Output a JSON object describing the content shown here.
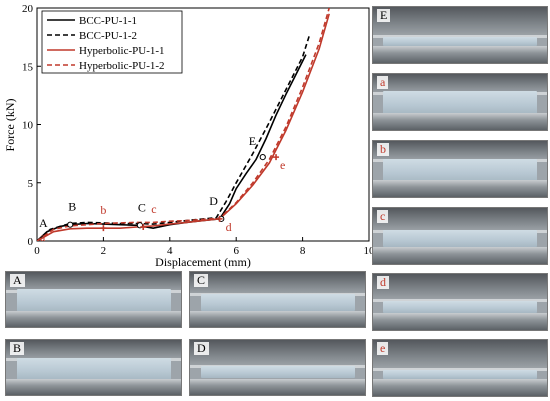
{
  "chart_data": {
    "type": "line",
    "xlabel": "Displacement (mm)",
    "ylabel": "Force (kN)",
    "xlim": [
      0,
      10
    ],
    "ylim": [
      0,
      20
    ],
    "xticks": [
      "0",
      "2",
      "4",
      "6",
      "8",
      "10"
    ],
    "yticks": [
      "0",
      "5",
      "10",
      "15",
      "20"
    ],
    "grid": false,
    "legend_position": "top-left",
    "series": [
      {
        "name": "BCC-PU-1-1",
        "color": "#000000",
        "dash": "solid",
        "x": [
          0,
          0.3,
          0.7,
          1.0,
          1.5,
          2.0,
          2.5,
          3.0,
          3.5,
          4.0,
          4.5,
          5.0,
          5.5,
          5.8,
          6.0,
          6.3,
          6.6,
          6.9,
          7.2,
          7.5,
          7.8,
          8.1
        ],
        "y": [
          0,
          0.8,
          1.25,
          1.4,
          1.5,
          1.45,
          1.4,
          1.35,
          1.1,
          1.4,
          1.6,
          1.75,
          1.9,
          3.2,
          4.5,
          5.8,
          7.0,
          8.8,
          10.8,
          12.6,
          14.3,
          16.0
        ]
      },
      {
        "name": "BCC-PU-1-2",
        "color": "#000000",
        "dash": "dashed",
        "x": [
          0,
          0.4,
          1.0,
          1.5,
          2.0,
          2.5,
          3.0,
          3.5,
          4.0,
          4.5,
          5.0,
          5.4,
          5.7,
          6.0,
          6.5,
          7.0,
          7.5,
          8.0,
          8.2
        ],
        "y": [
          0,
          1.0,
          1.5,
          1.6,
          1.55,
          1.5,
          1.5,
          1.45,
          1.6,
          1.75,
          1.9,
          2.0,
          3.4,
          5.0,
          7.5,
          10.2,
          13.0,
          15.8,
          17.6
        ]
      },
      {
        "name": "Hyperbolic-PU-1-1",
        "color": "#c0392b",
        "dash": "solid",
        "x": [
          0,
          0.5,
          1.0,
          1.5,
          2.0,
          2.5,
          3.0,
          3.5,
          4.0,
          4.5,
          5.0,
          5.5,
          6.0,
          6.5,
          7.0,
          7.5,
          8.0,
          8.5,
          8.8
        ],
        "y": [
          0,
          0.8,
          1.05,
          1.1,
          1.1,
          1.1,
          1.2,
          1.3,
          1.45,
          1.6,
          1.75,
          1.9,
          3.2,
          4.8,
          6.7,
          9.5,
          12.8,
          16.5,
          19.5
        ]
      },
      {
        "name": "Hyperbolic-PU-1-2",
        "color": "#c0392b",
        "dash": "dashed",
        "x": [
          0,
          0.5,
          1.0,
          1.5,
          2.0,
          2.5,
          3.0,
          3.5,
          4.0,
          4.5,
          5.0,
          5.5,
          6.0,
          6.5,
          7.0,
          7.5,
          8.0,
          8.5,
          8.8
        ],
        "y": [
          0,
          1.0,
          1.3,
          1.4,
          1.5,
          1.55,
          1.6,
          1.6,
          1.7,
          1.75,
          1.85,
          1.95,
          3.3,
          5.0,
          7.0,
          9.8,
          13.2,
          17.0,
          20.0
        ]
      }
    ],
    "annotations": [
      {
        "text": "A",
        "x": 0.0,
        "y": 0.0,
        "series": 0,
        "color": "#000000"
      },
      {
        "text": "B",
        "x": 1.0,
        "y": 1.4,
        "series": 0,
        "color": "#000000"
      },
      {
        "text": "C",
        "x": 3.1,
        "y": 1.35,
        "series": 0,
        "color": "#000000"
      },
      {
        "text": "D",
        "x": 5.55,
        "y": 1.9,
        "series": 0,
        "color": "#000000"
      },
      {
        "text": "E",
        "x": 6.8,
        "y": 7.2,
        "series": 0,
        "color": "#000000"
      },
      {
        "text": "a",
        "x": 0.0,
        "y": 0.0,
        "series": 2,
        "color": "#c0392b"
      },
      {
        "text": "b",
        "x": 2.0,
        "y": 1.1,
        "series": 2,
        "color": "#c0392b"
      },
      {
        "text": "c",
        "x": 3.2,
        "y": 1.2,
        "series": 2,
        "color": "#c0392b"
      },
      {
        "text": "d",
        "x": 5.5,
        "y": 1.9,
        "series": 2,
        "color": "#c0392b"
      },
      {
        "text": "e",
        "x": 7.2,
        "y": 7.2,
        "series": 2,
        "color": "#c0392b"
      }
    ]
  },
  "photos": [
    {
      "label": "A",
      "color": "#000000"
    },
    {
      "label": "B",
      "color": "#000000"
    },
    {
      "label": "C",
      "color": "#000000"
    },
    {
      "label": "D",
      "color": "#000000"
    },
    {
      "label": "E",
      "color": "#000000"
    },
    {
      "label": "a",
      "color": "#c0392b"
    },
    {
      "label": "b",
      "color": "#c0392b"
    },
    {
      "label": "c",
      "color": "#c0392b"
    },
    {
      "label": "d",
      "color": "#c0392b"
    },
    {
      "label": "e",
      "color": "#c0392b"
    }
  ]
}
